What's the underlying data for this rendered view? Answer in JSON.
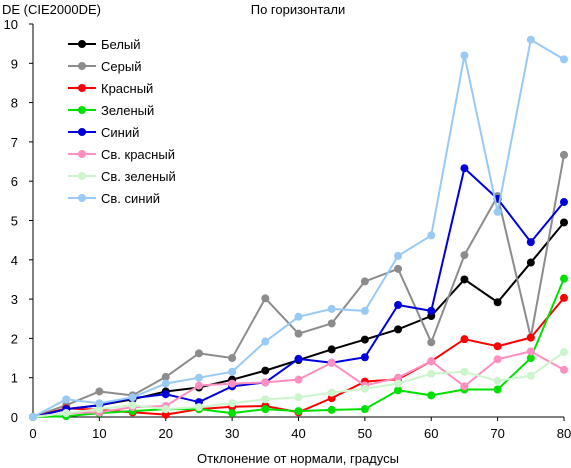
{
  "chart_data": {
    "type": "line",
    "title": "По горизонтали",
    "ylabel": "DE (CIE2000DE)",
    "xlabel": "Отклонение от нормали, градусы",
    "xlim": [
      0,
      80
    ],
    "ylim": [
      0,
      10
    ],
    "x_ticks": [
      0,
      10,
      20,
      30,
      40,
      50,
      60,
      70,
      80
    ],
    "y_ticks": [
      0,
      1,
      2,
      3,
      4,
      5,
      6,
      7,
      8,
      9,
      10
    ],
    "grid": false,
    "legend_position": "top-left",
    "x": [
      0,
      5,
      10,
      15,
      20,
      25,
      30,
      35,
      40,
      45,
      50,
      55,
      60,
      65,
      70,
      75,
      80
    ],
    "series": [
      {
        "name": "Белый",
        "color": "#000000",
        "values": [
          0,
          0.2,
          0.3,
          0.45,
          0.65,
          0.75,
          0.95,
          1.18,
          1.45,
          1.72,
          1.97,
          2.23,
          2.57,
          3.5,
          2.92,
          3.93,
          4.95
        ]
      },
      {
        "name": "Серый",
        "color": "#8c8c8c",
        "values": [
          0,
          0.3,
          0.65,
          0.55,
          1.02,
          1.62,
          1.5,
          3.02,
          2.12,
          2.38,
          3.45,
          3.77,
          1.9,
          4.12,
          5.62,
          2.03,
          6.67
        ]
      },
      {
        "name": "Красный",
        "color": "#ff0000",
        "values": [
          0,
          0.22,
          0.18,
          0.12,
          0.06,
          0.2,
          0.26,
          0.28,
          0.12,
          0.48,
          0.9,
          0.96,
          1.42,
          1.98,
          1.8,
          2.02,
          3.03
        ]
      },
      {
        "name": "Зеленый",
        "color": "#00e000",
        "values": [
          0,
          0.02,
          0.1,
          0.15,
          0.2,
          0.2,
          0.1,
          0.2,
          0.15,
          0.18,
          0.2,
          0.68,
          0.55,
          0.7,
          0.7,
          1.5,
          3.52
        ]
      },
      {
        "name": "Синий",
        "color": "#0000dd",
        "values": [
          0,
          0.2,
          0.3,
          0.48,
          0.58,
          0.38,
          0.78,
          0.88,
          1.48,
          1.38,
          1.52,
          2.85,
          2.7,
          6.33,
          5.55,
          4.45,
          5.47
        ]
      },
      {
        "name": "Св. красный",
        "color": "#ff8fc0",
        "values": [
          0,
          0.1,
          0.12,
          0.25,
          0.28,
          0.8,
          0.85,
          0.88,
          0.95,
          1.38,
          0.8,
          1.0,
          1.42,
          0.78,
          1.47,
          1.67,
          1.2
        ]
      },
      {
        "name": "Св. зеленый",
        "color": "#ccf5cc",
        "values": [
          0,
          0.1,
          0.2,
          0.3,
          0.2,
          0.25,
          0.35,
          0.45,
          0.5,
          0.62,
          0.72,
          0.85,
          1.1,
          1.15,
          0.92,
          1.05,
          1.65
        ]
      },
      {
        "name": "Св. синий",
        "color": "#99c9f5",
        "values": [
          0,
          0.45,
          0.35,
          0.5,
          0.85,
          1.0,
          1.15,
          1.92,
          2.55,
          2.75,
          2.7,
          4.1,
          4.62,
          9.2,
          5.22,
          9.6,
          9.1
        ]
      }
    ]
  }
}
